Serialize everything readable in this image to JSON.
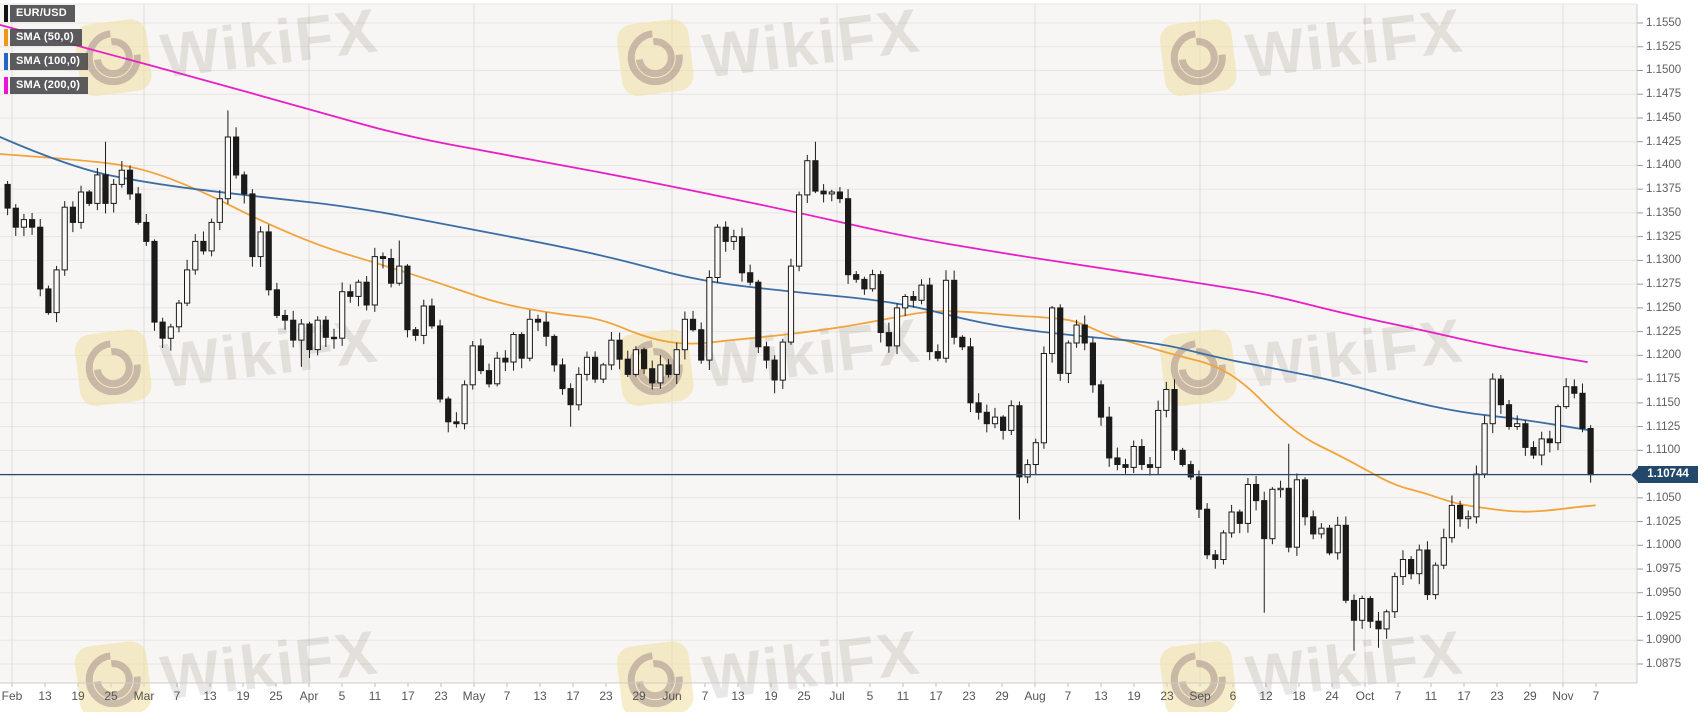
{
  "legend": {
    "items": [
      {
        "label": "EUR/USD",
        "chip_color": "#141414",
        "slug": "eur-usd"
      },
      {
        "label": "SMA (50,0)",
        "chip_color": "#f2970f",
        "slug": "sma-50"
      },
      {
        "label": "SMA (100,0)",
        "chip_color": "#2566c4",
        "slug": "sma-100"
      },
      {
        "label": "SMA (200,0)",
        "chip_color": "#ee11d4",
        "slug": "sma-200"
      }
    ]
  },
  "watermark": {
    "text": "WikiFX"
  },
  "chart_data": {
    "type": "candlestick",
    "symbol": "EUR/USD",
    "y_axis": {
      "min": 1.0875,
      "max": 1.155,
      "step": 0.0025,
      "tick_labels": [
        "1.1550",
        "1.1525",
        "1.1500",
        "1.1475",
        "1.1450",
        "1.1425",
        "1.1400",
        "1.1375",
        "1.1350",
        "1.1325",
        "1.1300",
        "1.1275",
        "1.1250",
        "1.1225",
        "1.1200",
        "1.1175",
        "1.1150",
        "1.1125",
        "1.1100",
        "1.1075",
        "1.1050",
        "1.1025",
        "1.1000",
        "1.0975",
        "1.0950",
        "1.0925",
        "1.0900",
        "1.0875"
      ]
    },
    "x_axis": {
      "labels": [
        "Feb",
        "13",
        "19",
        "25",
        "Mar",
        "7",
        "13",
        "19",
        "25",
        "Apr",
        "5",
        "11",
        "17",
        "23",
        "May",
        "7",
        "13",
        "17",
        "23",
        "29",
        "Jun",
        "7",
        "13",
        "19",
        "25",
        "Jul",
        "5",
        "11",
        "17",
        "23",
        "29",
        "Aug",
        "7",
        "13",
        "19",
        "23",
        "Sep",
        "6",
        "12",
        "18",
        "24",
        "Oct",
        "7",
        "11",
        "17",
        "23",
        "29",
        "Nov",
        "7"
      ],
      "month_indices": [
        0,
        4,
        9,
        14,
        20,
        25,
        31,
        36,
        41,
        47
      ]
    },
    "price_line": {
      "value": 1.10744,
      "label": "1.10744",
      "color": "#24486b"
    },
    "colors": {
      "bull_fill": "#faf9f7",
      "bear_fill": "#1b1b1b",
      "candle_stroke": "#1b1b1b",
      "sma50": "#f2a43c",
      "sma100": "#3a6ea5",
      "sma200": "#e81fc6",
      "grid": "#e7e6e3",
      "vgrid": "#dfdedb",
      "plot_bg": "#f7f6f4",
      "border": "#cccccc"
    },
    "candles": {
      "first_open": 1.138,
      "closes": [
        1.1355,
        1.1335,
        1.1343,
        1.1335,
        1.127,
        1.1245,
        1.129,
        1.1356,
        1.134,
        1.1372,
        1.136,
        1.139,
        1.136,
        1.138,
        1.1395,
        1.137,
        1.134,
        1.132,
        1.1235,
        1.1218,
        1.123,
        1.1255,
        1.129,
        1.132,
        1.131,
        1.134,
        1.1365,
        1.143,
        1.139,
        1.137,
        1.1304,
        1.133,
        1.1269,
        1.1242,
        1.1237,
        1.1216,
        1.1233,
        1.1206,
        1.1237,
        1.1219,
        1.1218,
        1.1267,
        1.1262,
        1.1277,
        1.1253,
        1.1304,
        1.1302,
        1.1276,
        1.1294,
        1.1227,
        1.1221,
        1.1252,
        1.1231,
        1.1154,
        1.113,
        1.1128,
        1.1169,
        1.121,
        1.1184,
        1.117,
        1.1197,
        1.1193,
        1.1222,
        1.1197,
        1.1238,
        1.1235,
        1.122,
        1.119,
        1.1165,
        1.1148,
        1.118,
        1.1198,
        1.1175,
        1.119,
        1.1216,
        1.1196,
        1.118,
        1.1206,
        1.1186,
        1.1171,
        1.119,
        1.118,
        1.1206,
        1.1238,
        1.1227,
        1.1195,
        1.1282,
        1.1335,
        1.132,
        1.1325,
        1.1287,
        1.1277,
        1.1209,
        1.1195,
        1.1174,
        1.1214,
        1.1294,
        1.1369,
        1.1405,
        1.1373,
        1.137,
        1.1372,
        1.1365,
        1.1285,
        1.128,
        1.127,
        1.1285,
        1.1224,
        1.121,
        1.125,
        1.1262,
        1.1258,
        1.1274,
        1.1204,
        1.1197,
        1.1279,
        1.1219,
        1.1209,
        1.115,
        1.114,
        1.1128,
        1.1135,
        1.1121,
        1.1147,
        1.1072,
        1.1085,
        1.1108,
        1.1202,
        1.125,
        1.1181,
        1.1213,
        1.1232,
        1.1213,
        1.1169,
        1.1135,
        1.1092,
        1.1085,
        1.1082,
        1.1104,
        1.1085,
        1.1082,
        1.1142,
        1.1164,
        1.11,
        1.1085,
        1.1072,
        1.1038,
        1.099,
        1.0985,
        1.1013,
        1.1035,
        1.1023,
        1.1064,
        1.1047,
        1.1007,
        1.1059,
        1.106,
        1.0998,
        1.1069,
        1.103,
        1.1012,
        1.1018,
        1.0992,
        1.1021,
        1.0942,
        1.0921,
        1.0944,
        1.092,
        1.0912,
        1.093,
        1.0967,
        1.0985,
        1.097,
        1.0995,
        1.0948,
        1.0979,
        1.1008,
        1.1042,
        1.1028,
        1.103,
        1.1075,
        1.1128,
        1.1175,
        1.1148,
        1.1125,
        1.1128,
        1.1103,
        1.1095,
        1.1112,
        1.1108,
        1.1146,
        1.1167,
        1.116,
        1.1123,
        1.10744
      ],
      "wick_overrides": {
        "12": {
          "h": 1.1425
        },
        "20": {
          "l": 1.1205
        },
        "27": {
          "h": 1.1458
        },
        "36": {
          "l": 1.1188
        },
        "48": {
          "h": 1.1321
        },
        "54": {
          "l": 1.1119
        },
        "69": {
          "l": 1.1125
        },
        "79": {
          "l": 1.1164
        },
        "94": {
          "l": 1.116
        },
        "99": {
          "h": 1.1425
        },
        "124": {
          "l": 1.1027
        },
        "128": {
          "h": 1.1252
        },
        "142": {
          "h": 1.1172
        },
        "154": {
          "l": 1.0929
        },
        "157": {
          "h": 1.1107
        },
        "165": {
          "l": 1.0889
        },
        "168": {
          "l": 1.0892
        },
        "182": {
          "h": 1.1181
        },
        "191": {
          "h": 1.1176
        },
        "194": {
          "l": 1.1066
        }
      }
    },
    "series": [
      {
        "name": "SMA 50",
        "color_key": "sma50",
        "points": [
          [
            0,
            1.1412
          ],
          [
            80,
            1.1406
          ],
          [
            140,
            1.1398
          ],
          [
            200,
            1.1374
          ],
          [
            260,
            1.1342
          ],
          [
            320,
            1.1315
          ],
          [
            380,
            1.1296
          ],
          [
            440,
            1.1276
          ],
          [
            500,
            1.1254
          ],
          [
            560,
            1.1243
          ],
          [
            600,
            1.1239
          ],
          [
            650,
            1.1217
          ],
          [
            690,
            1.1211
          ],
          [
            730,
            1.1216
          ],
          [
            770,
            1.122
          ],
          [
            810,
            1.1225
          ],
          [
            850,
            1.1231
          ],
          [
            890,
            1.1239
          ],
          [
            930,
            1.1247
          ],
          [
            970,
            1.1246
          ],
          [
            1010,
            1.1242
          ],
          [
            1045,
            1.124
          ],
          [
            1075,
            1.1237
          ],
          [
            1105,
            1.1222
          ],
          [
            1140,
            1.1211
          ],
          [
            1180,
            1.1199
          ],
          [
            1215,
            1.119
          ],
          [
            1245,
            1.117
          ],
          [
            1275,
            1.1138
          ],
          [
            1305,
            1.1112
          ],
          [
            1335,
            1.1097
          ],
          [
            1365,
            1.108
          ],
          [
            1395,
            1.1063
          ],
          [
            1425,
            1.1055
          ],
          [
            1455,
            1.1044
          ],
          [
            1485,
            1.1039
          ],
          [
            1515,
            1.1035
          ],
          [
            1545,
            1.1036
          ],
          [
            1575,
            1.104
          ],
          [
            1595,
            1.1042
          ]
        ]
      },
      {
        "name": "SMA 100",
        "color_key": "sma100",
        "points": [
          [
            0,
            1.143
          ],
          [
            70,
            1.1398
          ],
          [
            150,
            1.1381
          ],
          [
            250,
            1.1368
          ],
          [
            350,
            1.1357
          ],
          [
            450,
            1.1337
          ],
          [
            550,
            1.1317
          ],
          [
            620,
            1.1301
          ],
          [
            700,
            1.1278
          ],
          [
            800,
            1.1266
          ],
          [
            900,
            1.1256
          ],
          [
            990,
            1.1231
          ],
          [
            1090,
            1.1219
          ],
          [
            1160,
            1.1213
          ],
          [
            1220,
            1.1197
          ],
          [
            1280,
            1.1185
          ],
          [
            1340,
            1.1172
          ],
          [
            1400,
            1.1154
          ],
          [
            1460,
            1.114
          ],
          [
            1520,
            1.1133
          ],
          [
            1590,
            1.1121
          ]
        ]
      },
      {
        "name": "SMA 200",
        "color_key": "sma200",
        "points": [
          [
            0,
            1.1548
          ],
          [
            100,
            1.152
          ],
          [
            200,
            1.1491
          ],
          [
            300,
            1.1462
          ],
          [
            400,
            1.1432
          ],
          [
            500,
            1.1412
          ],
          [
            600,
            1.1393
          ],
          [
            700,
            1.1372
          ],
          [
            800,
            1.135
          ],
          [
            900,
            1.1326
          ],
          [
            1000,
            1.1308
          ],
          [
            1100,
            1.1292
          ],
          [
            1200,
            1.1276
          ],
          [
            1270,
            1.1264
          ],
          [
            1340,
            1.1245
          ],
          [
            1420,
            1.1227
          ],
          [
            1500,
            1.1208
          ],
          [
            1587,
            1.1193
          ]
        ]
      }
    ]
  }
}
